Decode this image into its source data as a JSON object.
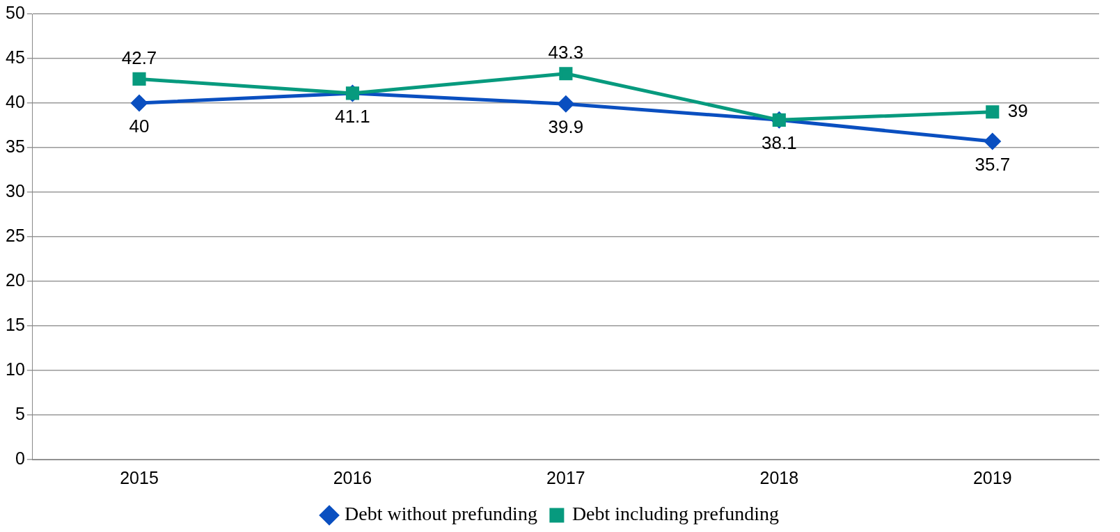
{
  "chart_data": {
    "type": "line",
    "categories": [
      "2015",
      "2016",
      "2017",
      "2018",
      "2019"
    ],
    "series": [
      {
        "name": "Debt without prefunding",
        "color": "#0a4fc0",
        "marker": "diamond",
        "values": [
          40,
          41.1,
          39.9,
          38.1,
          35.7
        ],
        "value_labels": [
          "40",
          "41.1",
          "39.9",
          "38.1",
          "35.7"
        ]
      },
      {
        "name": "Debt including prefunding",
        "color": "#079a7e",
        "marker": "square",
        "values": [
          42.7,
          41.1,
          43.3,
          38.1,
          39
        ],
        "value_labels": [
          "42.7",
          null,
          "43.3",
          null,
          "39"
        ]
      }
    ],
    "ylim": [
      0,
      50
    ],
    "yticks": [
      0,
      5,
      10,
      15,
      20,
      25,
      30,
      35,
      40,
      45,
      50
    ],
    "grid": "y",
    "legend": "bottom"
  }
}
